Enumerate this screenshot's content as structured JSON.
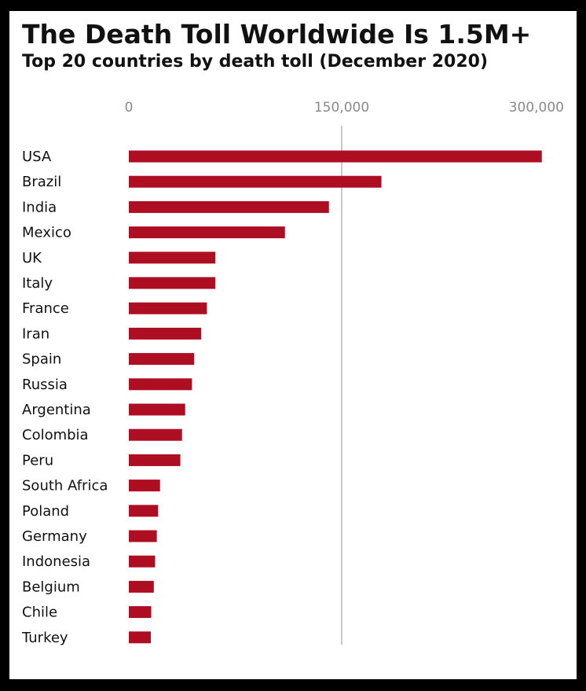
{
  "chart_data": {
    "type": "bar",
    "orientation": "horizontal",
    "title": "The Death Toll Worldwide Is 1.5M+",
    "subtitle": "Top 20 countries by death toll (December 2020)",
    "xlabel": "",
    "ylabel": "",
    "xlim": [
      0,
      300000
    ],
    "ticks": [
      0,
      150000,
      300000
    ],
    "tick_labels": [
      "0",
      "150,000",
      "300,000"
    ],
    "grid": "vertical line at 150,000",
    "bar_color": "#ad0e22",
    "gridline_color": "#c8c8c8",
    "categories": [
      "USA",
      "Brazil",
      "India",
      "Mexico",
      "UK",
      "Italy",
      "France",
      "Iran",
      "Spain",
      "Russia",
      "Argentina",
      "Colombia",
      "Peru",
      "South Africa",
      "Poland",
      "Germany",
      "Indonesia",
      "Belgium",
      "Chile",
      "Turkey"
    ],
    "values": [
      291000,
      178000,
      141000,
      110000,
      61000,
      61000,
      55000,
      51000,
      46000,
      44500,
      39700,
      37500,
      36300,
      22000,
      20600,
      19700,
      18500,
      17600,
      15800,
      15500
    ]
  }
}
